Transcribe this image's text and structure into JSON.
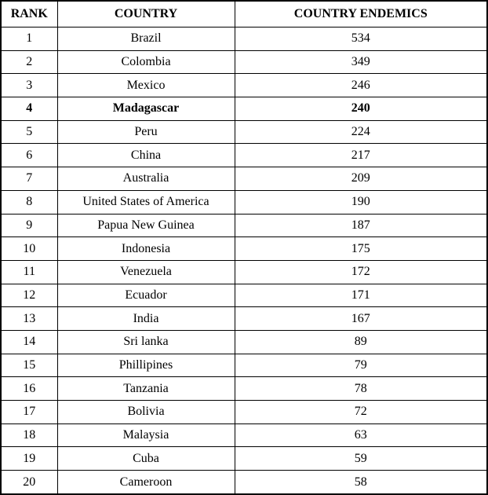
{
  "colors": {
    "border": "#000000",
    "text": "#000000",
    "background": "#ffffff"
  },
  "table": {
    "columns": [
      "RANK",
      "COUNTRY",
      "COUNTRY ENDEMICS"
    ],
    "rows": [
      {
        "rank": "1",
        "country": "Brazil",
        "endemics": "534",
        "bold": false
      },
      {
        "rank": "2",
        "country": "Colombia",
        "endemics": "349",
        "bold": false
      },
      {
        "rank": "3",
        "country": "Mexico",
        "endemics": "246",
        "bold": false
      },
      {
        "rank": "4",
        "country": "Madagascar",
        "endemics": "240",
        "bold": true
      },
      {
        "rank": "5",
        "country": "Peru",
        "endemics": "224",
        "bold": false
      },
      {
        "rank": "6",
        "country": "China",
        "endemics": "217",
        "bold": false
      },
      {
        "rank": "7",
        "country": "Australia",
        "endemics": "209",
        "bold": false
      },
      {
        "rank": "8",
        "country": "United States of America",
        "endemics": "190",
        "bold": false
      },
      {
        "rank": "9",
        "country": "Papua New Guinea",
        "endemics": "187",
        "bold": false
      },
      {
        "rank": "10",
        "country": "Indonesia",
        "endemics": "175",
        "bold": false
      },
      {
        "rank": "11",
        "country": "Venezuela",
        "endemics": "172",
        "bold": false
      },
      {
        "rank": "12",
        "country": "Ecuador",
        "endemics": "171",
        "bold": false
      },
      {
        "rank": "13",
        "country": "India",
        "endemics": "167",
        "bold": false
      },
      {
        "rank": "14",
        "country": "Sri lanka",
        "endemics": "89",
        "bold": false
      },
      {
        "rank": "15",
        "country": "Phillipines",
        "endemics": "79",
        "bold": false
      },
      {
        "rank": "16",
        "country": "Tanzania",
        "endemics": "78",
        "bold": false
      },
      {
        "rank": "17",
        "country": "Bolivia",
        "endemics": "72",
        "bold": false
      },
      {
        "rank": "18",
        "country": "Malaysia",
        "endemics": "63",
        "bold": false
      },
      {
        "rank": "19",
        "country": "Cuba",
        "endemics": "59",
        "bold": false
      },
      {
        "rank": "20",
        "country": "Cameroon",
        "endemics": "58",
        "bold": false
      }
    ]
  }
}
